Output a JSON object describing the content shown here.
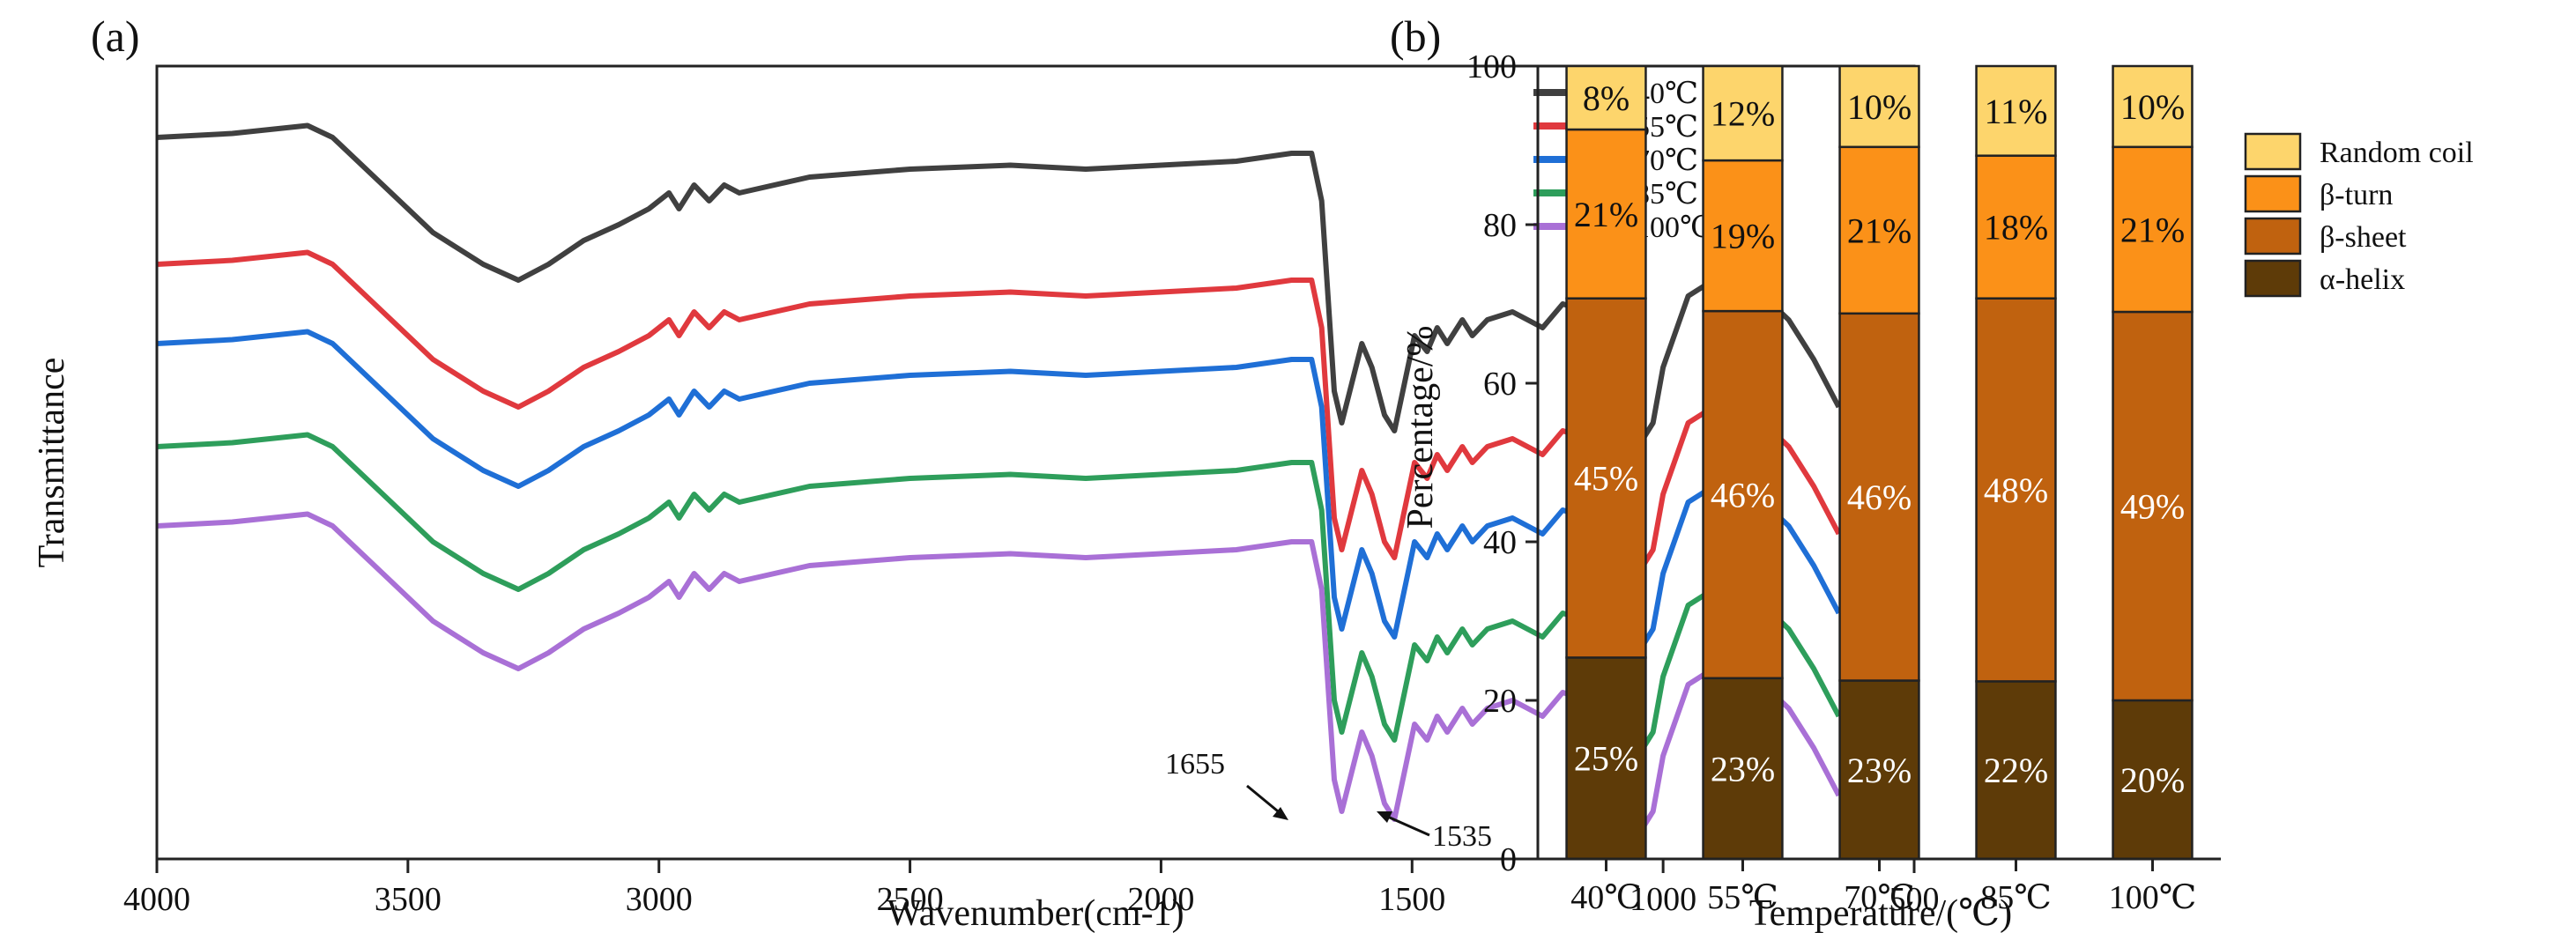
{
  "figure": {
    "panels": [
      {
        "label": "(a)"
      },
      {
        "label": "(b)"
      }
    ]
  },
  "chart_data": [
    {
      "type": "line",
      "panel": "(a)",
      "xlabel": "Wavenumber(cm-1)",
      "ylabel": "Transmittance",
      "xlim": [
        4000,
        500
      ],
      "x_reversed": true,
      "xticks": [
        4000,
        3500,
        3000,
        2500,
        2000,
        1500,
        1000,
        500
      ],
      "y_ticks_shown": false,
      "grid": false,
      "legend_position": "top-right",
      "annotations": [
        {
          "text": "1655",
          "x": 1655
        },
        {
          "text": "1535",
          "x": 1535
        }
      ],
      "series": [
        {
          "name": "40℃",
          "color": "#404040",
          "offset": 0.0
        },
        {
          "name": "55℃",
          "color": "#e0393e",
          "offset": -0.16
        },
        {
          "name": "70℃",
          "color": "#1f6fd6",
          "offset": -0.26
        },
        {
          "name": "85℃",
          "color": "#2e9e5b",
          "offset": -0.39
        },
        {
          "name": "100℃",
          "color": "#a970d6",
          "offset": -0.49
        }
      ],
      "base_spectrum": {
        "x": [
          4000,
          3850,
          3700,
          3650,
          3550,
          3450,
          3350,
          3280,
          3220,
          3150,
          3080,
          3020,
          2980,
          2960,
          2930,
          2900,
          2870,
          2840,
          2700,
          2500,
          2300,
          2150,
          2000,
          1850,
          1740,
          1700,
          1680,
          1655,
          1640,
          1620,
          1600,
          1580,
          1555,
          1535,
          1515,
          1495,
          1470,
          1450,
          1430,
          1400,
          1380,
          1350,
          1300,
          1240,
          1200,
          1150,
          1100,
          1060,
          1040,
          1020,
          1000,
          950,
          900,
          850,
          800,
          750,
          700,
          650
        ],
        "y": [
          0.86,
          0.865,
          0.875,
          0.86,
          0.8,
          0.74,
          0.7,
          0.68,
          0.7,
          0.73,
          0.75,
          0.77,
          0.79,
          0.77,
          0.8,
          0.78,
          0.8,
          0.79,
          0.81,
          0.82,
          0.825,
          0.82,
          0.825,
          0.83,
          0.84,
          0.84,
          0.78,
          0.54,
          0.5,
          0.55,
          0.6,
          0.57,
          0.51,
          0.49,
          0.55,
          0.61,
          0.59,
          0.62,
          0.6,
          0.63,
          0.61,
          0.63,
          0.64,
          0.62,
          0.65,
          0.64,
          0.6,
          0.54,
          0.48,
          0.5,
          0.57,
          0.66,
          0.68,
          0.66,
          0.66,
          0.63,
          0.58,
          0.52
        ]
      }
    },
    {
      "type": "bar",
      "stacked": true,
      "panel": "(b)",
      "xlabel": "Temperature/(℃)",
      "ylabel": "Percentage/%",
      "ylim": [
        0,
        100
      ],
      "yticks": [
        0,
        20,
        40,
        60,
        80,
        100
      ],
      "grid": false,
      "legend_position": "top-right",
      "categories": [
        "40℃",
        "55℃",
        "70℃",
        "85℃",
        "100℃"
      ],
      "series": [
        {
          "name": "α-helix",
          "color": "#5e3b08",
          "label_color": "#ffffff",
          "values": [
            25.4,
            22.8,
            22.5,
            22.4,
            20.0
          ],
          "labels": [
            "25%",
            "23%",
            "23%",
            "22%",
            "20%"
          ]
        },
        {
          "name": "β-sheet",
          "color": "#c0620f",
          "label_color": "#ffffff",
          "values": [
            45.3,
            46.3,
            46.3,
            48.3,
            49.0
          ],
          "labels": [
            "45%",
            "46%",
            "46%",
            "48%",
            "49%"
          ]
        },
        {
          "name": "β-turn",
          "color": "#fb9118",
          "label_color": "#111111",
          "values": [
            21.3,
            19.0,
            21.0,
            18.0,
            20.8
          ],
          "labels": [
            "21%",
            "19%",
            "21%",
            "18%",
            "21%"
          ]
        },
        {
          "name": "Random coil",
          "color": "#fdd56c",
          "label_color": "#111111",
          "values": [
            8.0,
            11.9,
            10.2,
            11.3,
            10.2
          ],
          "labels": [
            "8%",
            "12%",
            "10%",
            "11%",
            "10%"
          ]
        }
      ]
    }
  ]
}
